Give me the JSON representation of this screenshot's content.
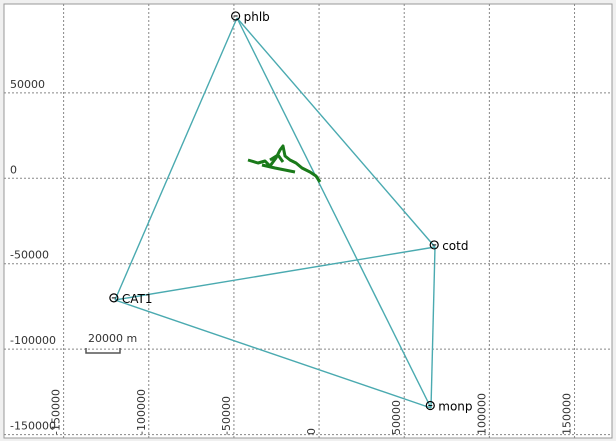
{
  "chart_data": {
    "type": "scatter",
    "points": [
      {
        "label": "phlb",
        "x": -49000,
        "y": 95000
      },
      {
        "label": "cotd",
        "x": 67600,
        "y": -39000
      },
      {
        "label": "CAT1",
        "x": -120500,
        "y": -70000
      },
      {
        "label": "monp",
        "x": 65300,
        "y": -133000
      }
    ],
    "xlim": [
      -185000,
      172000
    ],
    "ylim": [
      -152000,
      102000
    ],
    "xticks": [
      -150000,
      -100000,
      -50000,
      0,
      50000,
      100000,
      150000
    ],
    "yticks": [
      -150000,
      -100000,
      -50000,
      0,
      50000
    ],
    "grid": true,
    "color": "#000000",
    "scale_bar": "20000 m"
  }
}
